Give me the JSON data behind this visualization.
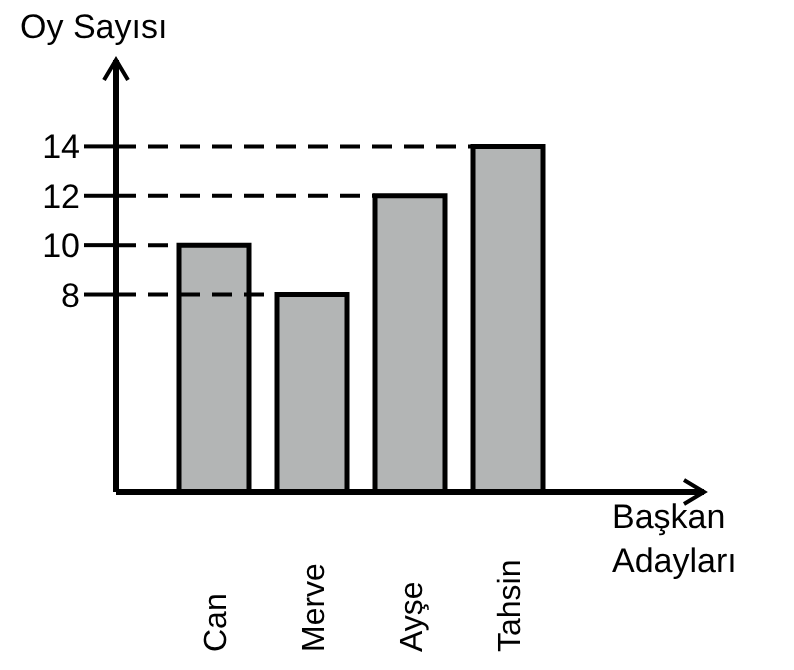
{
  "chart_data": {
    "type": "bar",
    "ylabel": "Oy Sayısı",
    "xlabel": "Başkan Adayları",
    "categories": [
      "Can",
      "Merve",
      "Ayşe",
      "Tahsin"
    ],
    "values": [
      10,
      8,
      12,
      14
    ],
    "color": "#b3b5b5",
    "ylim": [
      0,
      17.5
    ],
    "yticks": [
      8,
      10,
      12,
      14
    ],
    "ref_lines": [
      {
        "axis": "y",
        "value": 14,
        "color": "#000000",
        "line_style": "dashed"
      },
      {
        "axis": "y",
        "value": 12,
        "color": "#000000",
        "line_style": "dashed"
      },
      {
        "axis": "y",
        "value": 10,
        "color": "#000000",
        "line_style": "dashed"
      },
      {
        "axis": "y",
        "value": 8,
        "color": "#000000",
        "line_style": "dashed"
      }
    ]
  }
}
